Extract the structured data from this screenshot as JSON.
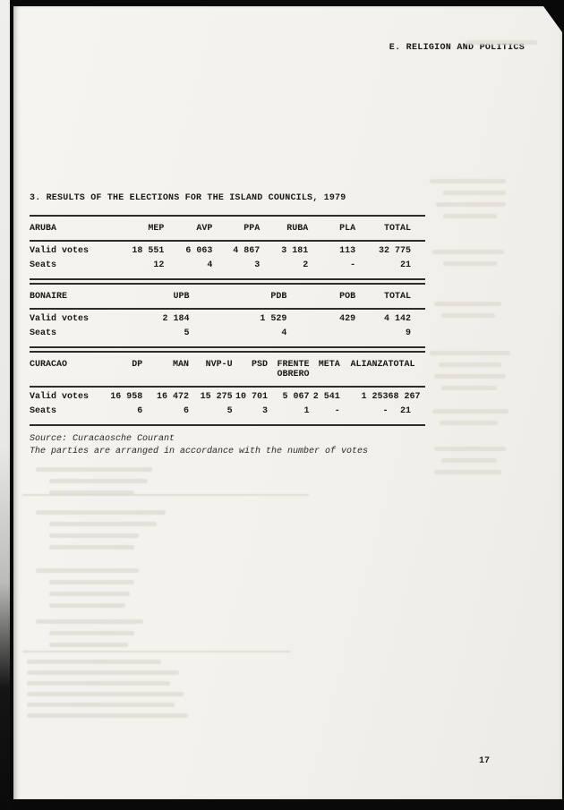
{
  "section_header": "E. RELIGION AND POLITICS",
  "title": "3. RESULTS OF THE ELECTIONS FOR THE ISLAND COUNCILS, 1979",
  "tables": [
    {
      "region": "ARUBA",
      "columns": [
        "MEP",
        "AVP",
        "PPA",
        "RUBA",
        "PLA",
        "TOTAL"
      ],
      "rows": [
        {
          "label": "Valid votes",
          "values": [
            "18 551",
            "6 063",
            "4 867",
            "3 181",
            "113",
            "32 775"
          ]
        },
        {
          "label": "Seats",
          "values": [
            "12",
            "4",
            "3",
            "2",
            "-",
            "21"
          ]
        }
      ]
    },
    {
      "region": "BONAIRE",
      "columns": [
        "UPB",
        "PDB",
        "POB",
        "TOTAL"
      ],
      "rows": [
        {
          "label": "Valid votes",
          "values": [
            "2 184",
            "1 529",
            "429",
            "4 142"
          ]
        },
        {
          "label": "Seats",
          "values": [
            "5",
            "4",
            "",
            "9"
          ]
        }
      ]
    },
    {
      "region": "CURACAO",
      "columns": [
        "DP",
        "MAN",
        "NVP-U",
        "PSD",
        "FRENTE\nOBRERO",
        "META",
        "ALIANZA",
        "TOTAL"
      ],
      "rows": [
        {
          "label": "Valid votes",
          "values": [
            "16 958",
            "16 472",
            "15 275",
            "10 701",
            "5 067",
            "2 541",
            "1 253",
            "68 267"
          ]
        },
        {
          "label": "Seats",
          "values": [
            "6",
            "6",
            "5",
            "3",
            "1",
            "-",
            "-",
            "21"
          ]
        }
      ]
    }
  ],
  "notes": {
    "source": "Source: Curacaosche Courant",
    "arrangement": "The parties are arranged in accordance with the number of votes"
  },
  "page_number": "17"
}
